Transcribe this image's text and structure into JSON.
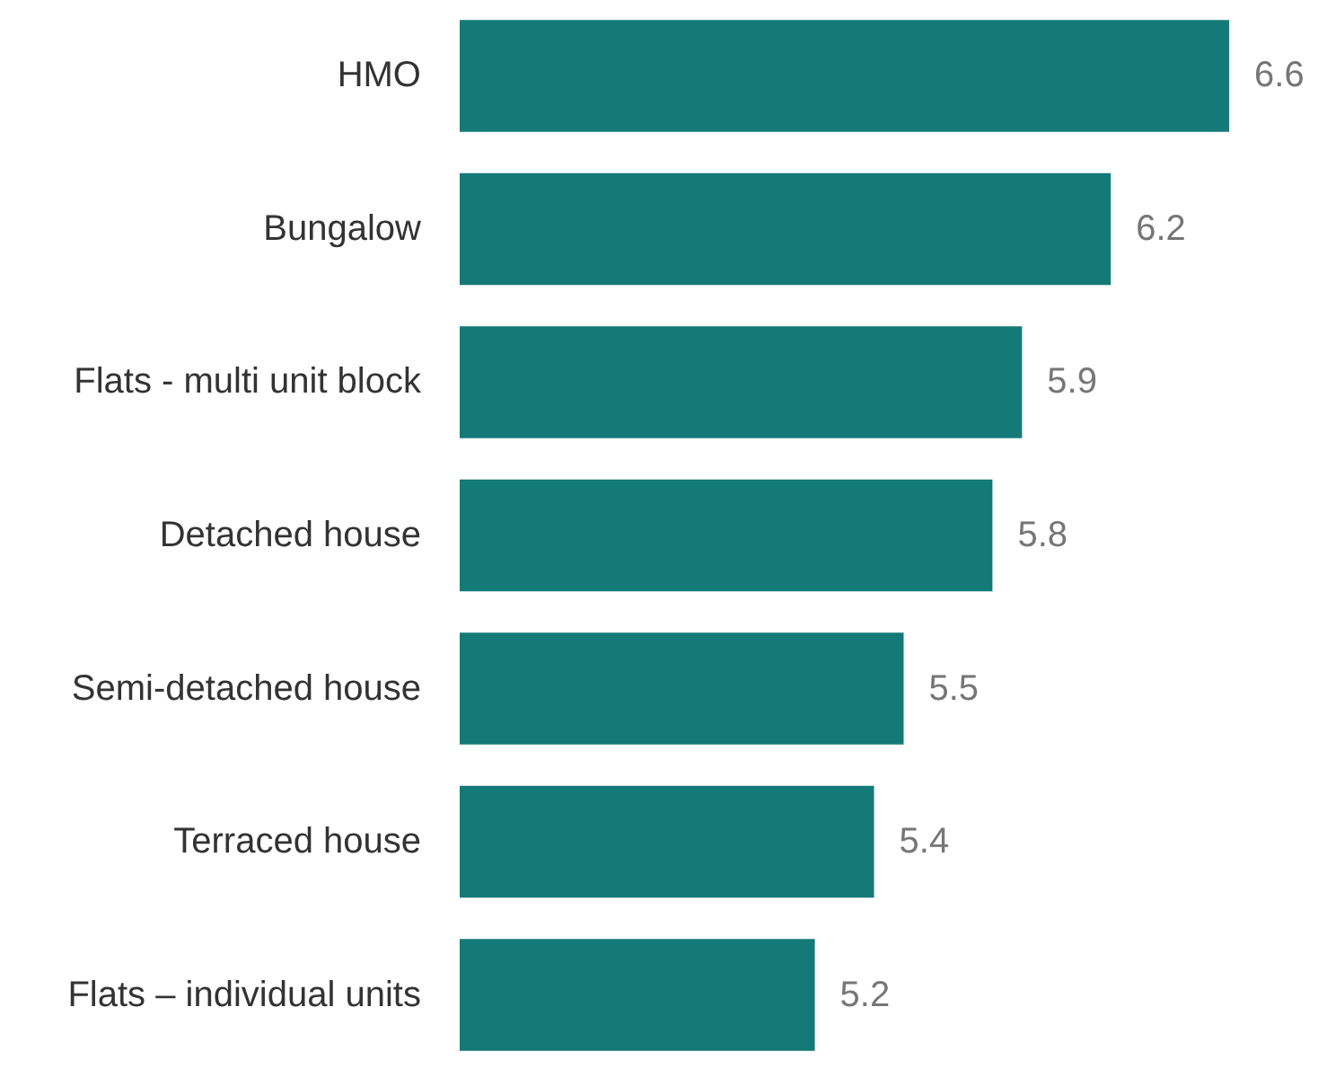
{
  "chart_data": {
    "type": "bar",
    "orientation": "horizontal",
    "data_labels": true,
    "categories": [
      "HMO",
      "Bungalow",
      "Flats - multi unit block",
      "Detached house",
      "Semi-detached house",
      "Terraced house",
      "Flats – individual units"
    ],
    "values": [
      6.6,
      6.2,
      5.9,
      5.8,
      5.5,
      5.4,
      5.2
    ],
    "color": "#147a78",
    "xlim": [
      4,
      6.9
    ],
    "tick_labels": "y"
  }
}
